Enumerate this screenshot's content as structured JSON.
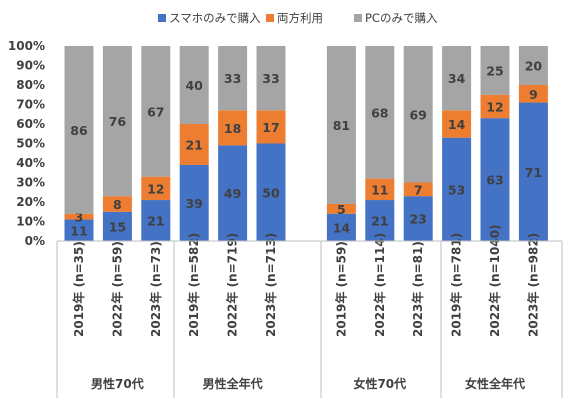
{
  "chart_data": {
    "type": "bar",
    "stacked": true,
    "percent_stacked": true,
    "ylim": [
      0,
      100
    ],
    "yticks": [
      "0%",
      "10%",
      "20%",
      "30%",
      "40%",
      "50%",
      "60%",
      "70%",
      "80%",
      "90%",
      "100%"
    ],
    "legend_position": "top",
    "grid": false,
    "series": [
      {
        "name": "スマホのみで購入",
        "color": "#4472C4"
      },
      {
        "name": "両方利用",
        "color": "#ED7D31"
      },
      {
        "name": "PCのみで購入",
        "color": "#A5A5A5"
      }
    ],
    "groups": [
      {
        "label": "男性70代",
        "bars": [
          {
            "label": "2019年 (n=35)",
            "values": [
              11,
              3,
              86
            ]
          },
          {
            "label": "2022年 (n=59)",
            "values": [
              15,
              8,
              76
            ]
          },
          {
            "label": "2023年 (n=73)",
            "values": [
              21,
              12,
              67
            ]
          }
        ]
      },
      {
        "label": "男性全年代",
        "bars": [
          {
            "label": "2019年 (n=582)",
            "values": [
              39,
              21,
              40
            ]
          },
          {
            "label": "2022年 (n=719)",
            "values": [
              49,
              18,
              33
            ]
          },
          {
            "label": "2023年 (n=713)",
            "values": [
              50,
              17,
              33
            ]
          }
        ]
      },
      {
        "label": "女性70代",
        "bars": [
          {
            "label": "2019年 (n=59)",
            "values": [
              14,
              5,
              81
            ]
          },
          {
            "label": "2022年 (n=114)",
            "values": [
              21,
              11,
              68
            ]
          },
          {
            "label": "2023年 (n=81)",
            "values": [
              23,
              7,
              69
            ]
          }
        ]
      },
      {
        "label": "女性全年代",
        "bars": [
          {
            "label": "2019年 (n=781)",
            "values": [
              53,
              14,
              34
            ]
          },
          {
            "label": "2022年 (n=1040)",
            "values": [
              63,
              12,
              25
            ]
          },
          {
            "label": "2023年 (n=982)",
            "values": [
              71,
              9,
              20
            ]
          }
        ]
      }
    ]
  }
}
